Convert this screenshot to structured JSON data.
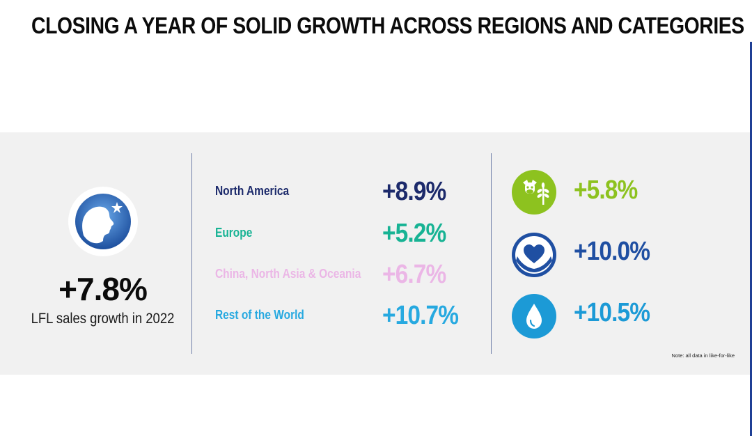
{
  "title": "CLOSING A YEAR OF SOLID GROWTH ACROSS REGIONS AND CATEGORIES",
  "summary": {
    "total_growth": "+7.8%",
    "label": "LFL sales growth in 2022",
    "logo_icon": "brand-logo-icon"
  },
  "regions": [
    {
      "name": "North America",
      "value": "+8.9%",
      "color": "#1c2a6b"
    },
    {
      "name": "Europe",
      "value": "+5.2%",
      "color": "#17b394"
    },
    {
      "name": "China, North Asia & Oceania",
      "value": "+6.7%",
      "color": "#ebb6e6"
    },
    {
      "name": "Rest of the World",
      "value": "+10.7%",
      "color": "#27a9e0"
    }
  ],
  "categories": [
    {
      "icon": "dairy-plant-icon",
      "value": "+5.8%",
      "color": "#8dc21f"
    },
    {
      "icon": "heart-hands-icon",
      "value": "+10.0%",
      "color": "#1f4fa2"
    },
    {
      "icon": "water-drop-icon",
      "value": "+10.5%",
      "color": "#1c9ad6"
    }
  ],
  "note": "Note: all data in like-for-like"
}
